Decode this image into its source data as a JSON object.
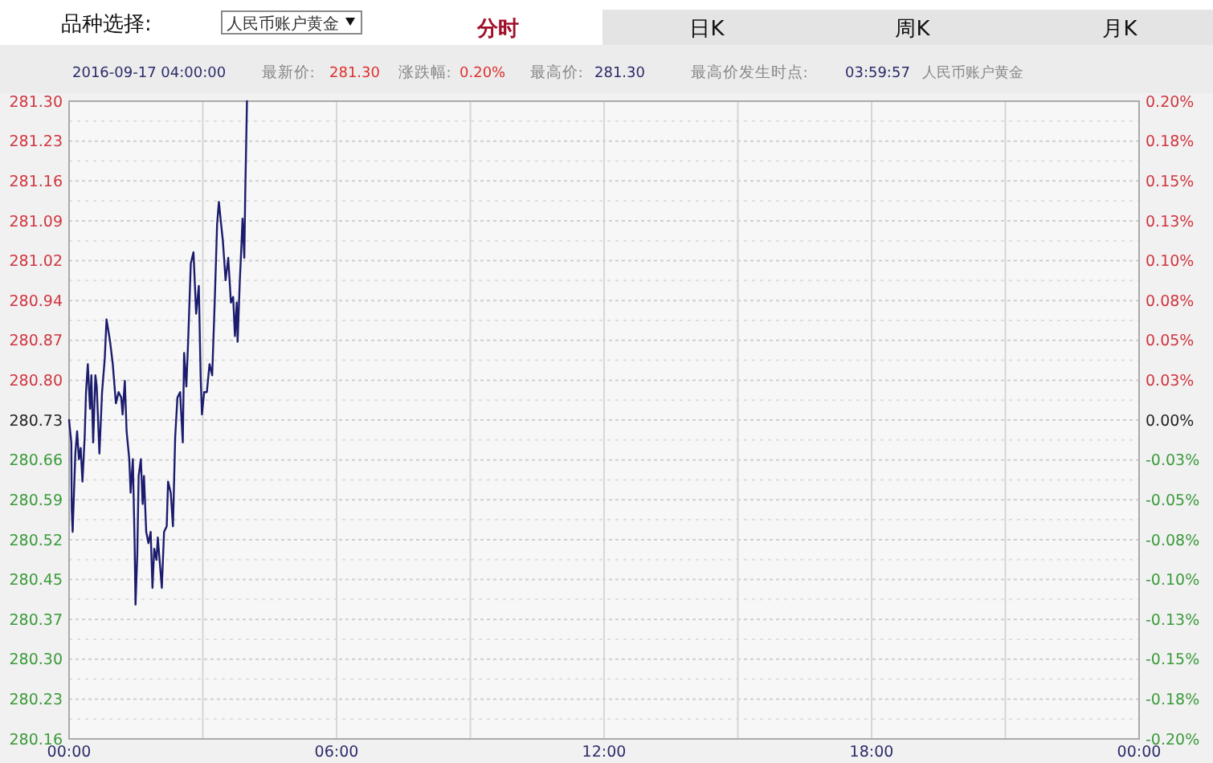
{
  "chart_data": {
    "type": "line",
    "annotations": [
      "品种选择:",
      "人民币账户黄金",
      "分时",
      "日K",
      "周K",
      "月K",
      "2016-09-17 04:00:00",
      "最新价:",
      "281.30",
      "涨跌幅:",
      "0.20%",
      "最高价:",
      "281.30",
      "最高价发生时点:",
      "03:59:57",
      "人民币账户黄金"
    ],
    "series": [
      {
        "color": "#1c1c6e",
        "x": [
          0,
          0.05,
          0.06,
          0.08,
          0.11,
          0.14,
          0.18,
          0.22,
          0.26,
          0.3,
          0.35,
          0.38,
          0.42,
          0.47,
          0.5,
          0.54,
          0.59,
          0.62,
          0.68,
          0.74,
          0.8,
          0.84,
          0.88,
          0.92,
          0.98,
          1.05,
          1.11,
          1.17,
          1.2,
          1.25,
          1.29,
          1.35,
          1.38,
          1.43,
          1.47,
          1.49,
          1.53,
          1.56,
          1.61,
          1.65,
          1.68,
          1.73,
          1.78,
          1.83,
          1.87,
          1.91,
          1.96,
          1.99,
          2.04,
          2.08,
          2.13,
          2.19,
          2.22,
          2.28,
          2.33,
          2.38,
          2.43,
          2.49,
          2.55,
          2.58,
          2.63,
          2.67,
          2.73,
          2.79,
          2.85,
          2.91,
          2.95,
          2.98,
          3.03,
          3.09,
          3.15,
          3.21,
          3.27,
          3.32,
          3.36,
          3.41,
          3.45,
          3.51,
          3.57,
          3.63,
          3.68,
          3.72,
          3.76,
          3.78,
          3.83,
          3.87,
          3.89,
          3.93,
          3.95,
          3.99
        ],
        "values": [
          280.73,
          280.69,
          280.57,
          280.53,
          280.6,
          280.67,
          280.71,
          280.66,
          280.68,
          280.62,
          280.7,
          280.78,
          280.83,
          280.75,
          280.81,
          280.69,
          280.81,
          280.79,
          280.67,
          280.78,
          280.84,
          280.91,
          280.89,
          280.87,
          280.83,
          280.76,
          280.78,
          280.77,
          280.74,
          280.8,
          280.71,
          280.66,
          280.6,
          280.66,
          280.51,
          280.4,
          280.49,
          280.63,
          280.66,
          280.58,
          280.63,
          280.53,
          280.51,
          280.53,
          280.43,
          280.5,
          280.48,
          280.52,
          280.47,
          280.43,
          280.53,
          280.54,
          280.62,
          280.6,
          280.54,
          280.7,
          280.77,
          280.78,
          280.69,
          280.85,
          280.79,
          280.87,
          281.01,
          281.03,
          280.92,
          280.97,
          280.81,
          280.74,
          280.78,
          280.78,
          280.83,
          280.81,
          280.95,
          281.08,
          281.12,
          281.08,
          281.05,
          280.98,
          281.02,
          280.94,
          280.95,
          280.88,
          280.94,
          280.87,
          280.98,
          281.05,
          281.09,
          281.02,
          281.13,
          281.3
        ]
      }
    ],
    "xlim": [
      0,
      24
    ],
    "xticks": [
      {
        "value": 0,
        "label": "00:00"
      },
      {
        "value": 3,
        "label": null
      },
      {
        "value": 6,
        "label": "06:00"
      },
      {
        "value": 9,
        "label": null
      },
      {
        "value": 12,
        "label": "12:00"
      },
      {
        "value": 15,
        "label": null
      },
      {
        "value": 18,
        "label": "18:00"
      },
      {
        "value": 21,
        "label": null
      },
      {
        "value": 24,
        "label": "00:00"
      }
    ],
    "ylim": [
      280.16,
      281.3
    ],
    "yticks": [
      {
        "value": 280.16,
        "label": "280.16"
      },
      {
        "value": 280.23125,
        "label": "280.23"
      },
      {
        "value": 280.3025,
        "label": "280.30"
      },
      {
        "value": 280.37375,
        "label": "280.37"
      },
      {
        "value": 280.445,
        "label": "280.45"
      },
      {
        "value": 280.51625,
        "label": "280.52"
      },
      {
        "value": 280.5875,
        "label": "280.59"
      },
      {
        "value": 280.65875,
        "label": "280.66"
      },
      {
        "value": 280.73,
        "label": "280.73"
      },
      {
        "value": 280.80125,
        "label": "280.80"
      },
      {
        "value": 280.8725,
        "label": "280.87"
      },
      {
        "value": 280.94375,
        "label": "280.94"
      },
      {
        "value": 281.015,
        "label": "281.02"
      },
      {
        "value": 281.08625,
        "label": "281.09"
      },
      {
        "value": 281.1575,
        "label": "281.16"
      },
      {
        "value": 281.22875,
        "label": "281.23"
      },
      {
        "value": 281.3,
        "label": "281.30"
      }
    ],
    "y2lim": [
      -0.2,
      0.2
    ],
    "y2ticks": [
      {
        "value": -0.2,
        "label": "-0.20%"
      },
      {
        "value": -0.175,
        "label": "-0.18%"
      },
      {
        "value": -0.15,
        "label": "-0.15%"
      },
      {
        "value": -0.125,
        "label": "-0.13%"
      },
      {
        "value": -0.1,
        "label": "-0.10%"
      },
      {
        "value": -0.075,
        "label": "-0.08%"
      },
      {
        "value": -0.05,
        "label": "-0.05%"
      },
      {
        "value": -0.025,
        "label": "-0.03%"
      },
      {
        "value": 0,
        "label": "0.00%"
      },
      {
        "value": 0.025,
        "label": "0.03%"
      },
      {
        "value": 0.05,
        "label": "0.05%"
      },
      {
        "value": 0.075,
        "label": "0.08%"
      },
      {
        "value": 0.1,
        "label": "0.10%"
      },
      {
        "value": 0.125,
        "label": "0.13%"
      },
      {
        "value": 0.15,
        "label": "0.15%"
      },
      {
        "value": 0.175,
        "label": "0.18%"
      },
      {
        "value": 0.2,
        "label": "0.20%"
      }
    ],
    "grid": true,
    "line_style": "solid",
    "marker": "none"
  }
}
